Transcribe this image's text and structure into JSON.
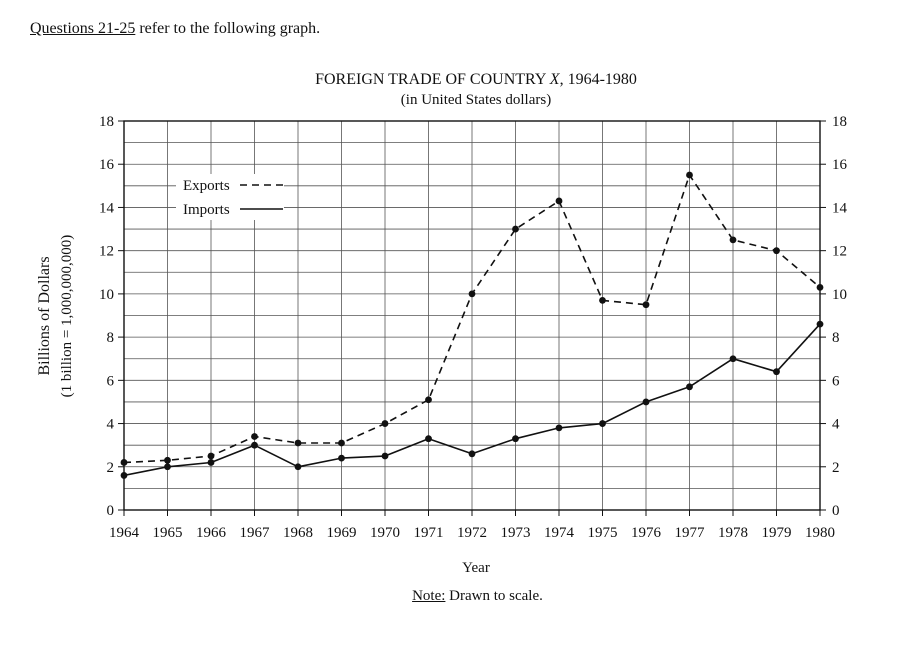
{
  "header": {
    "questions": "Questions 21-25",
    "rest": " refer to the following graph."
  },
  "note": {
    "label": "Note:",
    "text": " Drawn to scale."
  },
  "chart_data": {
    "type": "line",
    "title": "FOREIGN TRADE OF COUNTRY X, 1964-1980",
    "title_prefix": "FOREIGN TRADE OF COUNTRY ",
    "title_var": "X",
    "title_suffix": ", 1964-1980",
    "subtitle": "(in United States dollars)",
    "xlabel": "Year",
    "ylabel": "Billions of Dollars",
    "ylabel2": "(1 billion = 1,000,000,000)",
    "x": [
      1964,
      1965,
      1966,
      1967,
      1968,
      1969,
      1970,
      1971,
      1972,
      1973,
      1974,
      1975,
      1976,
      1977,
      1978,
      1979,
      1980
    ],
    "ylim": [
      0,
      18
    ],
    "yticks": [
      0,
      2,
      4,
      6,
      8,
      10,
      12,
      14,
      16,
      18
    ],
    "grid": true,
    "legend_position": "top-left",
    "series": [
      {
        "name": "Exports",
        "style": "dashed",
        "values": [
          2.2,
          2.3,
          2.5,
          3.4,
          3.1,
          3.1,
          4.0,
          5.1,
          10.0,
          13.0,
          14.3,
          9.7,
          9.5,
          15.5,
          12.5,
          12.0,
          10.3
        ]
      },
      {
        "name": "Imports",
        "style": "solid",
        "values": [
          1.6,
          2.0,
          2.2,
          3.0,
          2.0,
          2.4,
          2.5,
          3.3,
          2.6,
          3.3,
          3.8,
          4.0,
          5.0,
          5.7,
          7.0,
          6.4,
          8.6
        ]
      }
    ]
  }
}
